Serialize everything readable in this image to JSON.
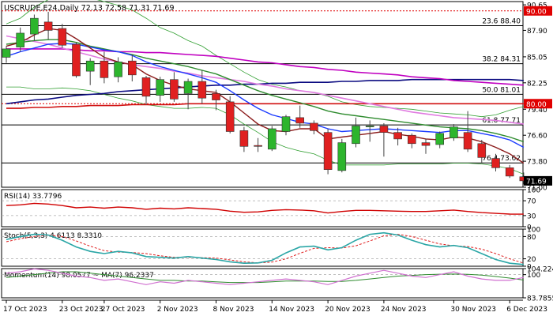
{
  "header": {
    "symbol_line": "USCRUDE,E24,Daily  72.13 72.58 71.31 71.69"
  },
  "colors": {
    "bull": "#2db52d",
    "bear": "#e02020",
    "ma_blue": "#1a3aff",
    "ma_brown": "#8b1a1a",
    "ma_green": "#2e8b2e",
    "ma_pink": "#e07ae0",
    "ma_magenta": "#c000c0",
    "ma_navy": "#0a0a80",
    "ma_red": "#d01010",
    "bollinger": "#33a033",
    "rsi": "#d00000",
    "stoch_main": "#2aa6a6",
    "stoch_signal": "#e02020",
    "momentum": "#d070d0",
    "momentum_ma": "#2e8b2e",
    "label_red": "#e00000"
  },
  "chart_data": [
    {
      "type": "candlestick",
      "title": "USCRUDE,E24,Daily  72.13 72.58 71.31 71.69",
      "ylim": [
        71.0,
        91.0
      ],
      "y_ticks": [
        "90.65",
        "87.90",
        "85.05",
        "82.25",
        "79.40",
        "76.60",
        "73.80",
        "71.00"
      ],
      "x_ticks": [
        "17 Oct 2023",
        "23 Oct 2023",
        "27 Oct 2023",
        "2 Nov 2023",
        "8 Nov 2023",
        "14 Nov 2023",
        "20 Nov 2023",
        "24 Nov 2023",
        "30 Nov 2023",
        "6 Dec 2023"
      ],
      "current_price": "71.69",
      "candles": [
        {
          "o": 85.0,
          "h": 86.2,
          "l": 84.4,
          "c": 85.9
        },
        {
          "o": 86.1,
          "h": 88.2,
          "l": 85.6,
          "c": 87.6
        },
        {
          "o": 87.5,
          "h": 89.6,
          "l": 86.8,
          "c": 89.2
        },
        {
          "o": 88.8,
          "h": 89.9,
          "l": 86.9,
          "c": 87.9
        },
        {
          "o": 88.1,
          "h": 88.6,
          "l": 86.0,
          "c": 86.3
        },
        {
          "o": 86.4,
          "h": 86.6,
          "l": 82.8,
          "c": 83.0
        },
        {
          "o": 83.5,
          "h": 84.9,
          "l": 82.0,
          "c": 84.6
        },
        {
          "o": 84.6,
          "h": 85.6,
          "l": 82.2,
          "c": 82.8
        },
        {
          "o": 82.9,
          "h": 85.0,
          "l": 82.3,
          "c": 84.5
        },
        {
          "o": 84.6,
          "h": 85.3,
          "l": 82.4,
          "c": 83.1
        },
        {
          "o": 82.8,
          "h": 83.0,
          "l": 79.9,
          "c": 80.8
        },
        {
          "o": 80.9,
          "h": 82.9,
          "l": 80.2,
          "c": 82.6
        },
        {
          "o": 82.6,
          "h": 83.4,
          "l": 80.2,
          "c": 80.5
        },
        {
          "o": 81.1,
          "h": 82.7,
          "l": 79.4,
          "c": 82.4
        },
        {
          "o": 82.4,
          "h": 83.6,
          "l": 80.0,
          "c": 80.6
        },
        {
          "o": 81.1,
          "h": 81.5,
          "l": 79.3,
          "c": 80.4
        },
        {
          "o": 80.2,
          "h": 80.8,
          "l": 76.8,
          "c": 77.0
        },
        {
          "o": 77.1,
          "h": 77.5,
          "l": 74.8,
          "c": 75.4
        },
        {
          "o": 75.5,
          "h": 76.3,
          "l": 74.8,
          "c": 75.4
        },
        {
          "o": 75.1,
          "h": 77.6,
          "l": 74.9,
          "c": 77.3
        },
        {
          "o": 77.0,
          "h": 78.8,
          "l": 76.6,
          "c": 78.6
        },
        {
          "o": 78.5,
          "h": 79.8,
          "l": 77.4,
          "c": 77.9
        },
        {
          "o": 77.9,
          "h": 78.2,
          "l": 76.7,
          "c": 77.1
        },
        {
          "o": 76.9,
          "h": 77.3,
          "l": 72.4,
          "c": 72.9
        },
        {
          "o": 72.8,
          "h": 76.2,
          "l": 72.6,
          "c": 75.8
        },
        {
          "o": 75.7,
          "h": 78.5,
          "l": 75.3,
          "c": 77.6
        },
        {
          "o": 77.5,
          "h": 78.2,
          "l": 75.9,
          "c": 77.6
        },
        {
          "o": 77.6,
          "h": 77.9,
          "l": 74.3,
          "c": 76.9
        },
        {
          "o": 76.9,
          "h": 77.4,
          "l": 75.5,
          "c": 76.2
        },
        {
          "o": 76.6,
          "h": 76.8,
          "l": 75.2,
          "c": 75.7
        },
        {
          "o": 75.8,
          "h": 76.2,
          "l": 74.6,
          "c": 75.5
        },
        {
          "o": 75.6,
          "h": 77.0,
          "l": 75.2,
          "c": 76.8
        },
        {
          "o": 76.3,
          "h": 77.8,
          "l": 76.0,
          "c": 77.5
        },
        {
          "o": 76.9,
          "h": 79.2,
          "l": 74.8,
          "c": 75.1
        },
        {
          "o": 75.7,
          "h": 76.1,
          "l": 73.6,
          "c": 74.2
        },
        {
          "o": 74.1,
          "h": 74.6,
          "l": 72.7,
          "c": 73.1
        },
        {
          "o": 73.1,
          "h": 73.4,
          "l": 72.0,
          "c": 72.2
        },
        {
          "o": 72.13,
          "h": 72.58,
          "l": 71.31,
          "c": 71.69
        }
      ],
      "moving_averages": [
        {
          "key": "ma_brown",
          "values": [
            86.2,
            86.6,
            87.4,
            88.1,
            87.9,
            87.0,
            86.0,
            85.0,
            84.5,
            84.2,
            83.2,
            82.5,
            82.0,
            81.6,
            81.4,
            81.2,
            80.2,
            79.0,
            77.8,
            77.1,
            77.0,
            77.3,
            77.3,
            76.2,
            76.4,
            76.6,
            76.8,
            77.0,
            76.7,
            76.5,
            76.2,
            76.1,
            76.4,
            76.3,
            75.9,
            75.3,
            74.6,
            73.6
          ]
        },
        {
          "key": "ma_blue",
          "values": [
            85.1,
            85.6,
            86.0,
            86.4,
            86.5,
            86.4,
            86.1,
            85.8,
            85.6,
            85.2,
            84.5,
            84.0,
            83.6,
            83.2,
            82.8,
            82.3,
            81.4,
            80.4,
            79.5,
            78.8,
            78.4,
            78.0,
            77.8,
            77.3,
            77.0,
            77.1,
            77.2,
            77.3,
            77.2,
            77.1,
            77.0,
            76.9,
            77.1,
            77.1,
            76.8,
            76.5,
            76.1,
            75.3
          ]
        },
        {
          "key": "ma_green",
          "values": [
            86.4,
            86.6,
            86.8,
            86.9,
            86.9,
            86.6,
            86.2,
            85.9,
            85.6,
            85.3,
            84.9,
            84.6,
            84.3,
            84.0,
            83.6,
            83.2,
            82.6,
            82.0,
            81.4,
            80.9,
            80.5,
            80.1,
            79.7,
            79.2,
            78.9,
            78.7,
            78.5,
            78.3,
            78.1,
            77.9,
            77.7,
            77.5,
            77.4,
            77.3,
            77.1,
            76.8,
            76.4,
            75.9
          ]
        },
        {
          "key": "ma_pink",
          "values": [
            87.3,
            87.0,
            86.7,
            86.4,
            86.0,
            85.6,
            85.2,
            84.8,
            84.5,
            84.2,
            84.0,
            83.8,
            83.5,
            83.3,
            83.0,
            82.8,
            82.6,
            82.4,
            82.1,
            81.9,
            81.6,
            81.4,
            81.2,
            80.9,
            80.6,
            80.3,
            80.0,
            79.7,
            79.4,
            79.1,
            78.9,
            78.7,
            78.5,
            78.4,
            78.3,
            78.2,
            78.0,
            77.8
          ]
        },
        {
          "key": "ma_magenta",
          "values": [
            85.9,
            85.9,
            85.9,
            85.9,
            85.9,
            85.8,
            85.7,
            85.7,
            85.6,
            85.6,
            85.5,
            85.5,
            85.4,
            85.3,
            85.2,
            85.1,
            84.9,
            84.7,
            84.5,
            84.4,
            84.2,
            84.0,
            83.9,
            83.7,
            83.6,
            83.4,
            83.3,
            83.2,
            83.1,
            82.9,
            82.8,
            82.7,
            82.5,
            82.4,
            82.3,
            82.2,
            82.1,
            82.0
          ]
        },
        {
          "key": "ma_navy",
          "values": [
            80.0,
            80.2,
            80.4,
            80.5,
            80.7,
            80.9,
            81.0,
            81.1,
            81.3,
            81.4,
            81.5,
            81.6,
            81.7,
            81.8,
            81.9,
            82.0,
            82.0,
            82.1,
            82.1,
            82.2,
            82.2,
            82.3,
            82.3,
            82.3,
            82.4,
            82.4,
            82.5,
            82.5,
            82.5,
            82.6,
            82.6,
            82.6,
            82.6,
            82.6,
            82.6,
            82.6,
            82.6,
            82.5
          ]
        },
        {
          "key": "ma_red",
          "values": [
            79.5,
            79.5,
            79.6,
            79.6,
            79.7,
            79.7,
            79.8,
            79.8,
            79.8,
            79.9,
            79.9,
            79.9,
            79.9,
            80.0,
            80.0,
            80.0,
            80.0,
            80.0,
            80.0,
            80.0,
            80.0,
            80.0,
            80.0,
            80.0,
            80.0,
            80.0,
            80.0,
            80.0,
            80.0,
            80.0,
            80.0,
            80.0,
            80.0,
            80.0,
            80.0,
            80.0,
            80.0,
            80.0
          ]
        },
        {
          "key": "bollinger",
          "values": [
            81.8,
            81.8,
            81.6,
            81.6,
            81.7,
            81.6,
            81.4,
            81.0,
            80.6,
            80.3,
            79.9,
            79.7,
            79.5,
            79.5,
            79.6,
            79.5,
            78.8,
            77.8,
            76.9,
            75.9,
            75.3,
            74.9,
            74.6,
            73.9,
            73.4,
            73.4,
            73.4,
            73.4,
            73.5,
            73.5,
            73.5,
            73.5,
            73.6,
            73.6,
            73.5,
            73.3,
            73.0,
            72.4
          ]
        },
        {
          "key": "bollinger",
          "values": [
            88.6,
            89.2,
            90.4,
            91.2,
            91.4,
            91.6,
            91.4,
            91.0,
            90.6,
            90.1,
            89.2,
            88.2,
            87.6,
            86.8,
            86.2,
            85.2,
            84.3,
            83.4,
            82.6,
            82.1,
            81.8,
            81.4,
            81.2,
            80.8,
            80.2,
            79.9,
            79.7,
            79.6,
            79.5,
            79.4,
            79.2,
            79.0,
            78.9,
            78.8,
            78.6,
            78.8,
            79.3,
            79.7
          ]
        }
      ],
      "horizontal_levels": [
        {
          "label": "23.6 88.40",
          "value": 88.4
        },
        {
          "label": "38.2 84.31",
          "value": 84.31
        },
        {
          "label": "50.0 81.01",
          "value": 81.01
        },
        {
          "label": "61.8 77.71",
          "value": 77.71
        },
        {
          "label": "76.4 73.62",
          "value": 73.62
        }
      ],
      "marked_levels": [
        {
          "label": "90.00",
          "value": 90.0
        },
        {
          "label": "80.00",
          "value": 80.0
        }
      ]
    },
    {
      "type": "line",
      "title": "RSI(14) 33.7796",
      "ylim": [
        0,
        100
      ],
      "y_ticks": [
        "100",
        "70",
        "30",
        "0"
      ],
      "levels": [
        70,
        30
      ],
      "series": [
        {
          "key": "rsi",
          "values": [
            57,
            59,
            63,
            61,
            57,
            51,
            53,
            50,
            53,
            51,
            47,
            50,
            48,
            51,
            49,
            47,
            42,
            39,
            40,
            44,
            46,
            45,
            43,
            37,
            41,
            44,
            44,
            43,
            42,
            41,
            41,
            43,
            45,
            41,
            38,
            36,
            34,
            33.78
          ]
        }
      ]
    },
    {
      "type": "line",
      "title": "Stoch(5,3,3) 4.6113 8.3310",
      "ylim": [
        0,
        100
      ],
      "y_ticks": [
        "100",
        "80",
        "20",
        "0"
      ],
      "levels": [
        80,
        20
      ],
      "series": [
        {
          "key": "stoch_main",
          "values": [
            72,
            80,
            86,
            84,
            70,
            52,
            40,
            34,
            40,
            36,
            26,
            24,
            22,
            26,
            22,
            18,
            12,
            8,
            9,
            16,
            36,
            52,
            54,
            44,
            50,
            70,
            86,
            90,
            84,
            70,
            58,
            52,
            56,
            50,
            34,
            18,
            8,
            4.61
          ]
        },
        {
          "key": "stoch_signal",
          "values": [
            66,
            74,
            80,
            84,
            80,
            68,
            54,
            42,
            38,
            37,
            34,
            28,
            24,
            24,
            23,
            22,
            17,
            12,
            9,
            11,
            20,
            35,
            48,
            50,
            49,
            55,
            68,
            82,
            86,
            80,
            70,
            60,
            55,
            53,
            46,
            34,
            20,
            8.33
          ]
        }
      ]
    },
    {
      "type": "line",
      "title": "Momentum(14) 98.0577 ~ MA(7) 96.2337",
      "ylim": [
        83.7855,
        104.2248
      ],
      "y_ticks": [
        "104.2248",
        "100",
        "83.7855"
      ],
      "levels": [
        100
      ],
      "series": [
        {
          "key": "momentum",
          "values": [
            101,
            102,
            104,
            103,
            101,
            99,
            98,
            96,
            97,
            95,
            93,
            95,
            94,
            96,
            95,
            94,
            93,
            94,
            95,
            96,
            97,
            96,
            95,
            93,
            96,
            99,
            101,
            103,
            101,
            99,
            98,
            100,
            102,
            99,
            97,
            96,
            96,
            98.06
          ]
        },
        {
          "key": "momentum_ma",
          "values": [
            98,
            99,
            100,
            101,
            102,
            102,
            101,
            100,
            99,
            98,
            97,
            96,
            96,
            95.5,
            95.5,
            95,
            94.5,
            94.5,
            94.5,
            95,
            95.5,
            95.5,
            95.5,
            95.2,
            95.3,
            96,
            97,
            98,
            99,
            99.5,
            100,
            100.3,
            100.4,
            100.2,
            99.7,
            98.7,
            97.6,
            96.23
          ]
        }
      ]
    }
  ],
  "panels": {
    "rsi_title": "RSI(14) 33.7796",
    "stoch_title": "Stoch(5,3,3) 4.6113 8.3310",
    "momentum_title": "Momentum(14) 98.0577 ~ MA(7) 96.2337"
  }
}
